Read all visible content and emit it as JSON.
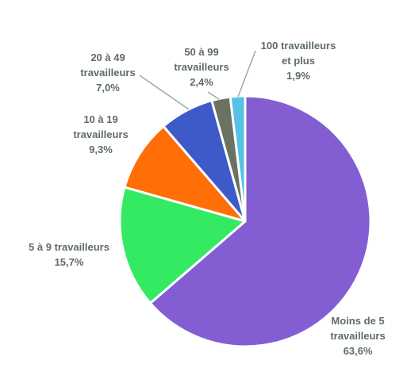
{
  "chart_data": {
    "type": "pie",
    "start_angle_deg": 0,
    "direction": "clockwise",
    "slices": [
      {
        "label": [
          "Moins de 5",
          "travailleurs"
        ],
        "value": 63.6,
        "value_label": "63,6%",
        "color": "#835ed3"
      },
      {
        "label": [
          "5 à 9 travailleurs"
        ],
        "value": 15.7,
        "value_label": "15,7%",
        "color": "#33ea62"
      },
      {
        "label": [
          "10 à 19",
          "travailleurs"
        ],
        "value": 9.3,
        "value_label": "9,3%",
        "color": "#ff6e07"
      },
      {
        "label": [
          "20 à 49",
          "travailleurs"
        ],
        "value": 7.0,
        "value_label": "7,0%",
        "color": "#3e5ac8"
      },
      {
        "label": [
          "50 à 99",
          "travailleurs"
        ],
        "value": 2.4,
        "value_label": "2,4%",
        "color": "#6a7262"
      },
      {
        "label": [
          "100 travailleurs",
          "et plus"
        ],
        "value": 1.9,
        "value_label": "1,9%",
        "color": "#57c0e6"
      }
    ],
    "slice_border_color": "#ffffff",
    "label_color": "#5f6b6b",
    "leader_line_color": "#a0a8a8"
  }
}
